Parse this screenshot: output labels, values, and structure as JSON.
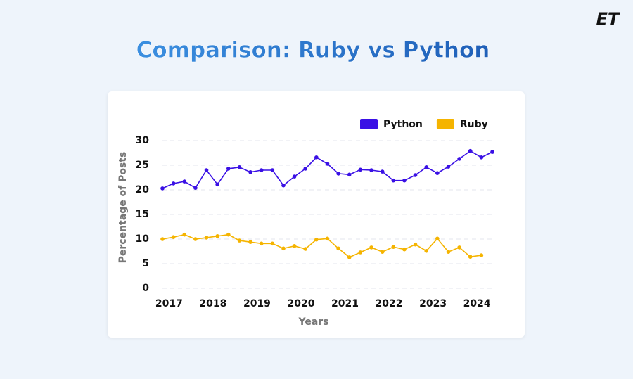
{
  "logo": "ET",
  "chart_data": {
    "type": "line",
    "title": "Comparison: Ruby vs Python",
    "xlabel": "Years",
    "ylabel": "Percentage of Posts",
    "xlim": [
      2016.85,
      2024.35
    ],
    "xticks": [
      2017,
      2018,
      2019,
      2020,
      2021,
      2022,
      2023,
      2024
    ],
    "ylim": [
      0,
      30
    ],
    "yticks": [
      0,
      5,
      10,
      15,
      20,
      25,
      30
    ],
    "grid": true,
    "legend": "top-right",
    "series": [
      {
        "name": "Python",
        "color": "#3a10e5",
        "x": [
          2016.85,
          2017.1,
          2017.35,
          2017.6,
          2017.85,
          2018.1,
          2018.35,
          2018.6,
          2018.85,
          2019.1,
          2019.35,
          2019.6,
          2019.85,
          2020.1,
          2020.35,
          2020.6,
          2020.85,
          2021.1,
          2021.35,
          2021.6,
          2021.85,
          2022.1,
          2022.35,
          2022.6,
          2022.85,
          2023.1,
          2023.35,
          2023.6,
          2023.85,
          2024.1,
          2024.35
        ],
        "values": [
          20.3,
          21.3,
          21.7,
          20.4,
          24.0,
          21.1,
          24.3,
          24.6,
          23.6,
          24.0,
          24.0,
          20.9,
          22.7,
          24.3,
          26.6,
          25.3,
          23.3,
          23.1,
          24.1,
          24.0,
          23.7,
          21.9,
          21.9,
          23.0,
          24.6,
          23.4,
          24.7,
          26.3,
          27.9,
          26.6,
          27.7
        ]
      },
      {
        "name": "Ruby",
        "color": "#f5b400",
        "x": [
          2016.85,
          2017.1,
          2017.35,
          2017.6,
          2017.85,
          2018.1,
          2018.35,
          2018.6,
          2018.85,
          2019.1,
          2019.35,
          2019.6,
          2019.85,
          2020.1,
          2020.35,
          2020.6,
          2020.85,
          2021.1,
          2021.35,
          2021.6,
          2021.85,
          2022.1,
          2022.35,
          2022.6,
          2022.85,
          2023.1,
          2023.35,
          2023.6,
          2023.85,
          2024.1
        ],
        "values": [
          10.0,
          10.4,
          10.9,
          10.0,
          10.3,
          10.6,
          10.9,
          9.7,
          9.4,
          9.1,
          9.1,
          8.1,
          8.6,
          8.0,
          9.9,
          10.1,
          8.1,
          6.3,
          7.3,
          8.3,
          7.4,
          8.4,
          7.9,
          8.9,
          7.6,
          10.1,
          7.4,
          8.3,
          6.4,
          6.7
        ]
      }
    ]
  }
}
